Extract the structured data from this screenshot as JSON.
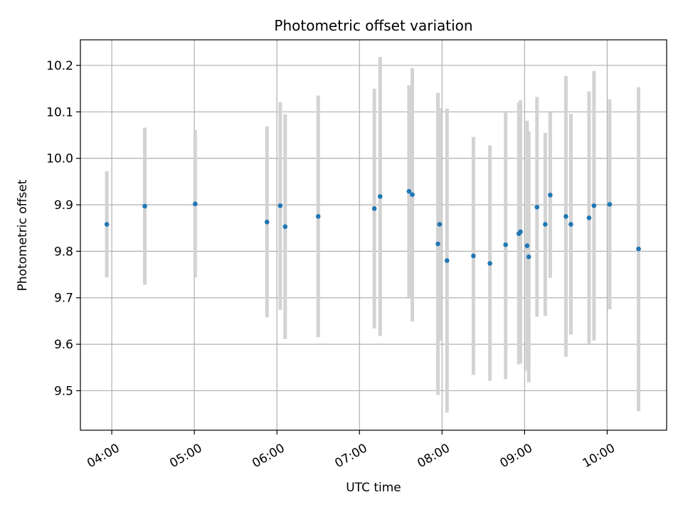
{
  "chart_data": {
    "type": "scatter",
    "title": "Photometric offset variation",
    "xlabel": "UTC time",
    "ylabel": "Photometric offset",
    "x_unit": "hours UTC",
    "xlim": [
      3.62,
      10.72
    ],
    "ylim": [
      9.415,
      10.255
    ],
    "grid": true,
    "x_ticks": [
      {
        "value": 4,
        "label": "04:00"
      },
      {
        "value": 5,
        "label": "05:00"
      },
      {
        "value": 6,
        "label": "06:00"
      },
      {
        "value": 7,
        "label": "07:00"
      },
      {
        "value": 8,
        "label": "08:00"
      },
      {
        "value": 9,
        "label": "09:00"
      },
      {
        "value": 10,
        "label": "10:00"
      }
    ],
    "y_ticks": [
      {
        "value": 9.5,
        "label": "9.5"
      },
      {
        "value": 9.6,
        "label": "9.6"
      },
      {
        "value": 9.7,
        "label": "9.7"
      },
      {
        "value": 9.8,
        "label": "9.8"
      },
      {
        "value": 9.9,
        "label": "9.9"
      },
      {
        "value": 10.0,
        "label": "10.0"
      },
      {
        "value": 10.1,
        "label": "10.1"
      },
      {
        "value": 10.2,
        "label": "10.2"
      }
    ],
    "marker_color": "#1f77b4",
    "errorbar_color": "#d3d3d3",
    "points": [
      {
        "x": 3.94,
        "y": 9.858,
        "err_low": 9.744,
        "err_high": 9.972
      },
      {
        "x": 4.4,
        "y": 9.897,
        "err_low": 9.728,
        "err_high": 10.066
      },
      {
        "x": 5.01,
        "y": 9.902,
        "err_low": 9.744,
        "err_high": 10.061
      },
      {
        "x": 5.88,
        "y": 9.863,
        "err_low": 9.658,
        "err_high": 10.069
      },
      {
        "x": 6.04,
        "y": 9.898,
        "err_low": 9.674,
        "err_high": 10.121
      },
      {
        "x": 6.1,
        "y": 9.853,
        "err_low": 9.611,
        "err_high": 10.095
      },
      {
        "x": 6.5,
        "y": 9.875,
        "err_low": 9.615,
        "err_high": 10.135
      },
      {
        "x": 7.18,
        "y": 9.892,
        "err_low": 9.634,
        "err_high": 10.15
      },
      {
        "x": 7.25,
        "y": 9.918,
        "err_low": 9.618,
        "err_high": 10.218
      },
      {
        "x": 7.6,
        "y": 9.929,
        "err_low": 9.701,
        "err_high": 10.157
      },
      {
        "x": 7.64,
        "y": 9.922,
        "err_low": 9.649,
        "err_high": 10.194
      },
      {
        "x": 7.95,
        "y": 9.816,
        "err_low": 9.491,
        "err_high": 10.141
      },
      {
        "x": 7.97,
        "y": 9.858,
        "err_low": 9.607,
        "err_high": 10.108
      },
      {
        "x": 8.06,
        "y": 9.78,
        "err_low": 9.453,
        "err_high": 10.107
      },
      {
        "x": 8.38,
        "y": 9.79,
        "err_low": 9.534,
        "err_high": 10.046
      },
      {
        "x": 8.58,
        "y": 9.774,
        "err_low": 9.521,
        "err_high": 10.028
      },
      {
        "x": 8.77,
        "y": 9.814,
        "err_low": 9.525,
        "err_high": 10.102
      },
      {
        "x": 8.93,
        "y": 9.838,
        "err_low": 9.557,
        "err_high": 10.12
      },
      {
        "x": 8.95,
        "y": 9.842,
        "err_low": 9.559,
        "err_high": 10.125
      },
      {
        "x": 9.03,
        "y": 9.812,
        "err_low": 9.543,
        "err_high": 10.081
      },
      {
        "x": 9.05,
        "y": 9.788,
        "err_low": 9.518,
        "err_high": 10.058
      },
      {
        "x": 9.15,
        "y": 9.895,
        "err_low": 9.659,
        "err_high": 10.132
      },
      {
        "x": 9.25,
        "y": 9.858,
        "err_low": 9.661,
        "err_high": 10.055
      },
      {
        "x": 9.31,
        "y": 9.921,
        "err_low": 9.743,
        "err_high": 10.099
      },
      {
        "x": 9.5,
        "y": 9.875,
        "err_low": 9.573,
        "err_high": 10.177
      },
      {
        "x": 9.56,
        "y": 9.858,
        "err_low": 9.621,
        "err_high": 10.096
      },
      {
        "x": 9.78,
        "y": 9.872,
        "err_low": 9.6,
        "err_high": 10.144
      },
      {
        "x": 9.84,
        "y": 9.898,
        "err_low": 9.608,
        "err_high": 10.188
      },
      {
        "x": 10.03,
        "y": 9.901,
        "err_low": 9.675,
        "err_high": 10.127
      },
      {
        "x": 10.38,
        "y": 9.805,
        "err_low": 9.456,
        "err_high": 10.153
      }
    ]
  }
}
